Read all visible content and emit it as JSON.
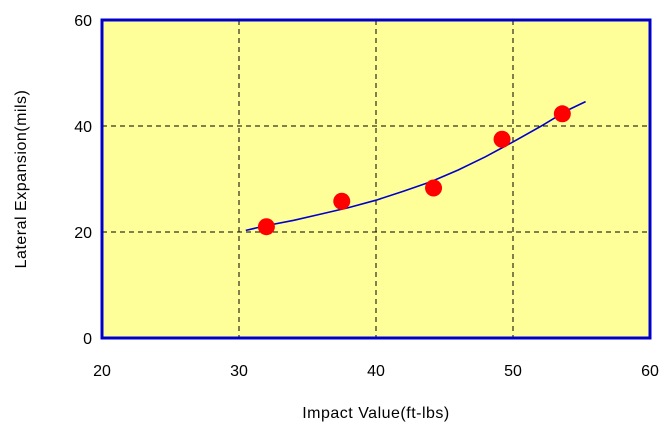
{
  "chart_data": {
    "type": "scatter",
    "title": "",
    "xlabel": "Impact Value(ft-lbs)",
    "ylabel": "Lateral Expansion(mils)",
    "xlim": [
      20,
      60
    ],
    "ylim": [
      0,
      60
    ],
    "x_ticks": [
      20,
      30,
      40,
      50,
      60
    ],
    "y_ticks": [
      0,
      20,
      40,
      60
    ],
    "x_tick_labels": [
      "20",
      "30",
      "40",
      "50",
      "60"
    ],
    "y_tick_labels": [
      "0",
      "20",
      "40",
      "60"
    ],
    "grid": true,
    "series": [
      {
        "kind": "points",
        "color": "#ff0000",
        "x": [
          32.0,
          37.5,
          44.2,
          49.2,
          53.6
        ],
        "y": [
          21.0,
          25.8,
          28.3,
          37.5,
          42.3
        ]
      },
      {
        "kind": "fit-line",
        "color": "#0000cc",
        "x": [
          30.5,
          32,
          34,
          36,
          38,
          40,
          42,
          44,
          46,
          48,
          50,
          52,
          54,
          55.3
        ],
        "y": [
          20.3,
          21.2,
          22.2,
          23.4,
          24.6,
          26.0,
          27.7,
          29.5,
          31.7,
          34.2,
          37.0,
          39.9,
          43.0,
          44.6
        ]
      }
    ],
    "colors": {
      "plot_background": "#ffff99",
      "frame": "#0000cc",
      "grid": "#000000"
    }
  }
}
